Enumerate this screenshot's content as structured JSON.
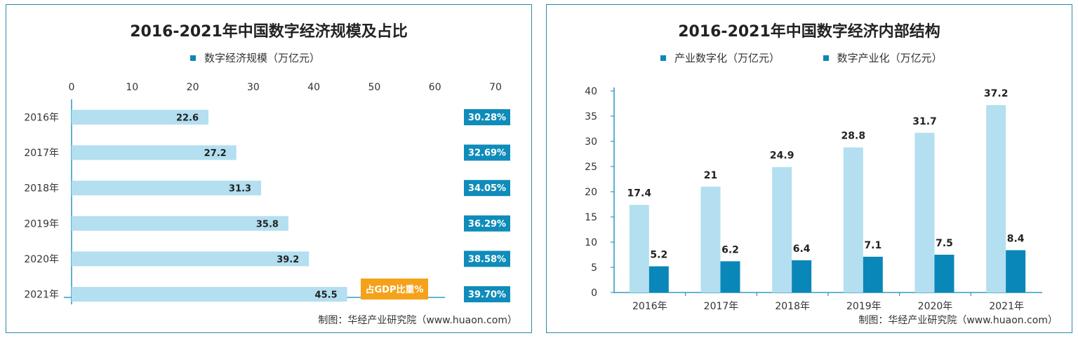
{
  "colors": {
    "light_bar": "#b3dff0",
    "dark_bar": "#0a87b9",
    "badge": "#0f8cba",
    "highlight": "#f5a21b",
    "border": "#2b8ba6",
    "axis": "#0a87b9"
  },
  "chart_data": [
    {
      "type": "bar",
      "orientation": "horizontal",
      "title": "2016-2021年中国数字经济规模及占比",
      "categories": [
        "2016年",
        "2017年",
        "2018年",
        "2019年",
        "2020年",
        "2021年"
      ],
      "series": [
        {
          "name": "数字经济规模（万亿元）",
          "values": [
            22.6,
            27.2,
            31.3,
            35.8,
            39.2,
            45.5
          ]
        }
      ],
      "gdp_share_label": "占GDP比重%",
      "gdp_share": [
        "30.28%",
        "32.69%",
        "34.05%",
        "36.29%",
        "38.58%",
        "39.70%"
      ],
      "xlim": [
        0,
        70
      ],
      "xticks": [
        0,
        10,
        20,
        30,
        40,
        50,
        60,
        70
      ],
      "source": "制图：华经产业研究院（www.huaon.com）"
    },
    {
      "type": "bar",
      "orientation": "vertical",
      "title": "2016-2021年中国数字经济内部结构",
      "categories": [
        "2016年",
        "2017年",
        "2018年",
        "2019年",
        "2020年",
        "2021年"
      ],
      "series": [
        {
          "name": "产业数字化（万亿元）",
          "values": [
            17.4,
            21,
            24.9,
            28.8,
            31.7,
            37.2
          ]
        },
        {
          "name": "数字产业化（万亿元）",
          "values": [
            5.2,
            6.2,
            6.4,
            7.1,
            7.5,
            8.4
          ]
        }
      ],
      "ylim": [
        0,
        40
      ],
      "yticks": [
        0,
        5,
        10,
        15,
        20,
        25,
        30,
        35,
        40
      ],
      "source": "制图：华经产业研究院（www.huaon.com）"
    }
  ]
}
